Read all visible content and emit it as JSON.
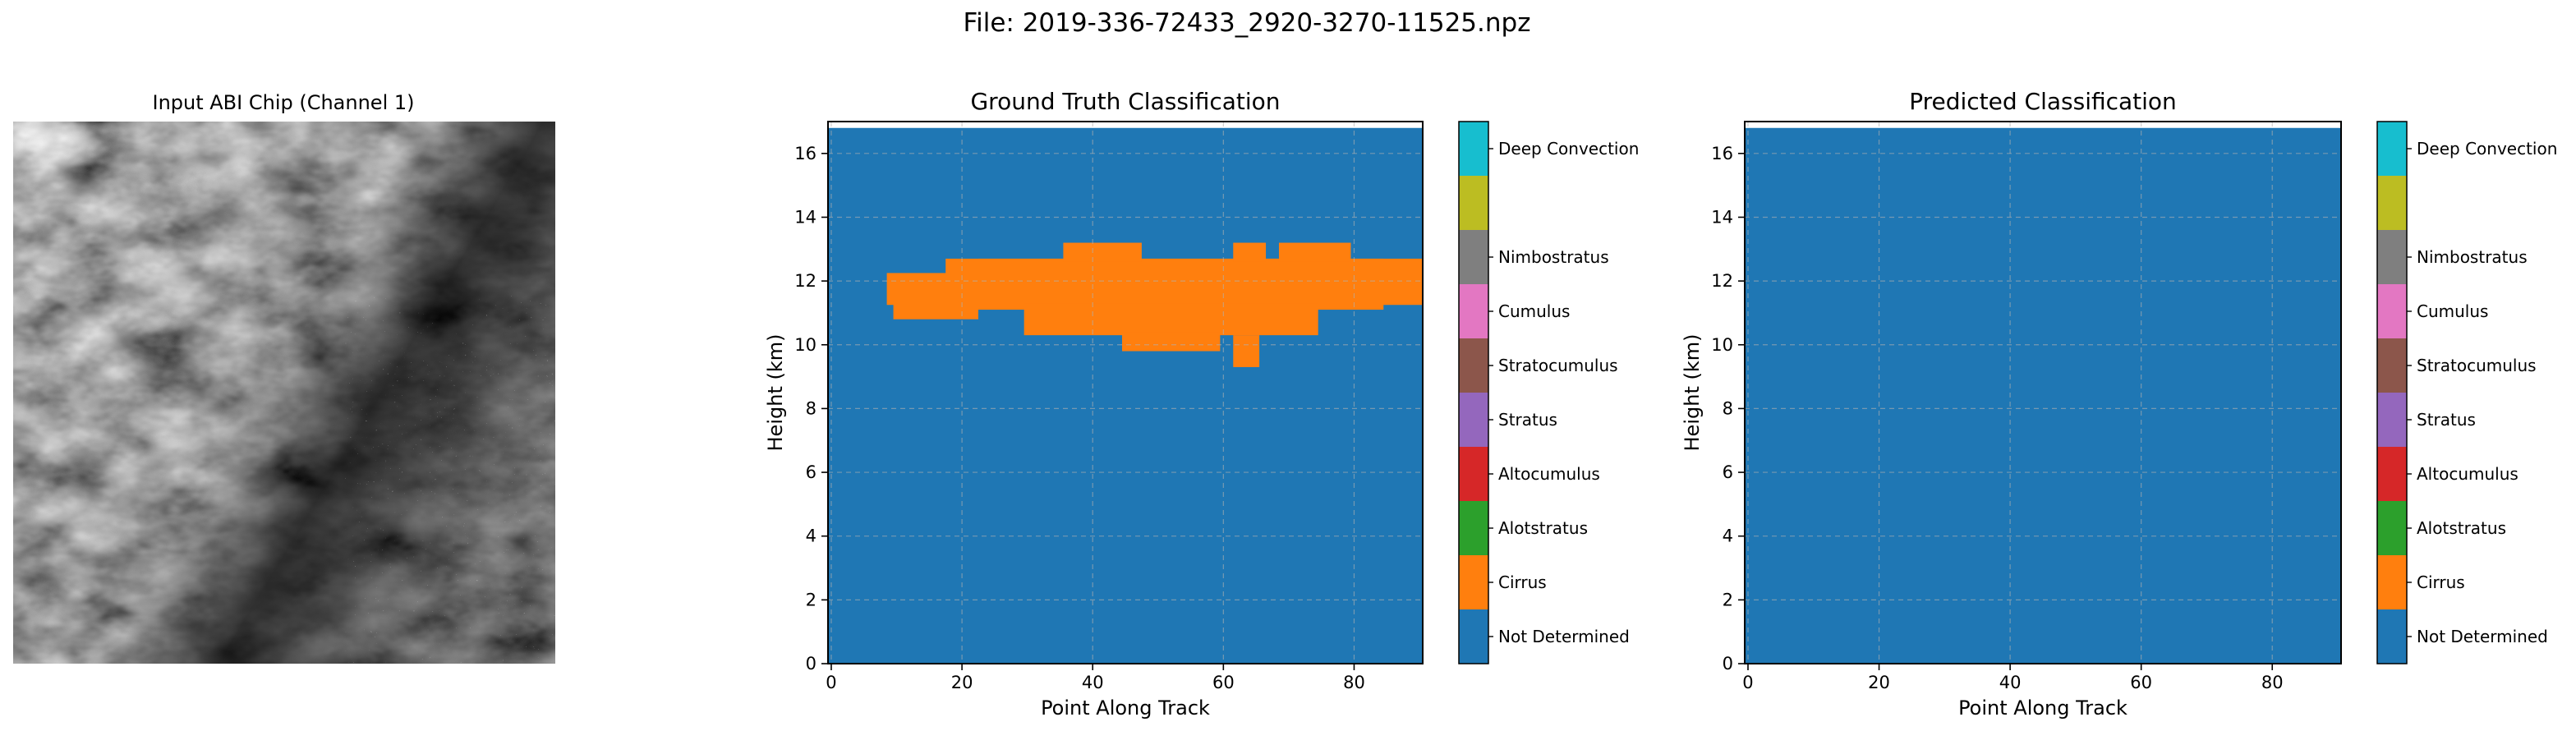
{
  "figure": {
    "suptitle": "File: 2019-336-72433_2920-3270-11525.npz",
    "image_panel_title": "Input ABI Chip (Channel 1)"
  },
  "classes": [
    {
      "name": "Not Determined",
      "color": "#1f77b4"
    },
    {
      "name": "Cirrus",
      "color": "#ff7f0e"
    },
    {
      "name": "Alotstratus",
      "color": "#2ca02c"
    },
    {
      "name": "Altocumulus",
      "color": "#d62728"
    },
    {
      "name": "Stratus",
      "color": "#9467bd"
    },
    {
      "name": "Stratocumulus",
      "color": "#8c564b"
    },
    {
      "name": "Cumulus",
      "color": "#e377c2"
    },
    {
      "name": "Nimbostratus",
      "color": "#7f7f7f"
    },
    {
      "name": "Deep Convection",
      "color": "#bcbd22"
    },
    {
      "name": "Deep Convection",
      "color": "#17becf"
    }
  ],
  "chart_data": [
    {
      "type": "heatmap",
      "title": "Ground Truth Classification",
      "xlabel": "Point Along Track",
      "ylabel": "Height (km)",
      "xlim": [
        -0.5,
        90.5
      ],
      "ylim": [
        0,
        17
      ],
      "data_top_km": 16.8,
      "xticks": [
        0,
        20,
        40,
        60,
        80
      ],
      "yticks": [
        0,
        2,
        4,
        6,
        8,
        10,
        12,
        14,
        16
      ],
      "grid": true,
      "background_class": "Not Determined",
      "regions": [
        {
          "class": "Cirrus",
          "x0": 8.5,
          "x1": 90.5,
          "y_bottom": 11.25,
          "y_top": 12.25
        },
        {
          "class": "Cirrus",
          "x0": 9.5,
          "x1": 22.5,
          "y_bottom": 10.8,
          "y_top": 11.5
        },
        {
          "class": "Cirrus",
          "x0": 17.5,
          "x1": 84.5,
          "y_bottom": 11.1,
          "y_top": 12.7
        },
        {
          "class": "Cirrus",
          "x0": 22.5,
          "x1": 90.5,
          "y_bottom": 12.0,
          "y_top": 12.7
        },
        {
          "class": "Cirrus",
          "x0": 29.5,
          "x1": 74.5,
          "y_bottom": 10.3,
          "y_top": 11.3
        },
        {
          "class": "Cirrus",
          "x0": 35.5,
          "x1": 47.5,
          "y_bottom": 12.6,
          "y_top": 13.2
        },
        {
          "class": "Cirrus",
          "x0": 44.5,
          "x1": 59.5,
          "y_bottom": 9.8,
          "y_top": 10.4
        },
        {
          "class": "Cirrus",
          "x0": 61.5,
          "x1": 66.5,
          "y_bottom": 12.6,
          "y_top": 13.2
        },
        {
          "class": "Cirrus",
          "x0": 68.5,
          "x1": 79.5,
          "y_bottom": 12.6,
          "y_top": 13.2
        },
        {
          "class": "Cirrus",
          "x0": 61.5,
          "x1": 65.5,
          "y_bottom": 9.3,
          "y_top": 10.3
        }
      ]
    },
    {
      "type": "heatmap",
      "title": "Predicted Classification",
      "xlabel": "Point Along Track",
      "ylabel": "Height (km)",
      "xlim": [
        -0.5,
        90.5
      ],
      "ylim": [
        0,
        17
      ],
      "data_top_km": 16.8,
      "xticks": [
        0,
        20,
        40,
        60,
        80
      ],
      "yticks": [
        0,
        2,
        4,
        6,
        8,
        10,
        12,
        14,
        16
      ],
      "grid": true,
      "background_class": "Not Determined",
      "regions": []
    }
  ]
}
